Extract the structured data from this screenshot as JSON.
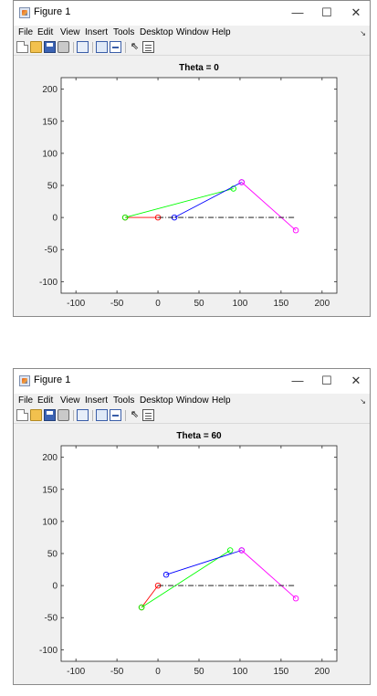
{
  "windows": [
    {
      "title": "Figure 1",
      "menus": [
        "File",
        "Edit",
        "View",
        "Insert",
        "Tools",
        "Desktop",
        "Window",
        "Help"
      ],
      "controls": {
        "minimize": "—",
        "maximize": "☐",
        "close": "✕"
      },
      "chart_data": {
        "type": "line",
        "title": "Theta = 0",
        "xlabel": "",
        "ylabel": "",
        "xlim": [
          -118,
          218
        ],
        "ylim": [
          -118,
          218
        ],
        "xticks": [
          -100,
          -50,
          0,
          50,
          100,
          150,
          200
        ],
        "yticks": [
          200,
          150,
          100,
          50,
          0,
          -50,
          -100
        ],
        "grid": false,
        "series": [
          {
            "color": "#ff0000",
            "style": "solid",
            "marker": "circle",
            "points": [
              [
                0,
                0
              ],
              [
                -40,
                0
              ]
            ]
          },
          {
            "color": "#00ff00",
            "style": "solid",
            "marker": "circle",
            "points": [
              [
                -40,
                0
              ],
              [
                92,
                45
              ]
            ]
          },
          {
            "color": "#0000ff",
            "style": "solid",
            "marker": "circle",
            "points": [
              [
                20,
                0
              ],
              [
                102,
                55
              ]
            ]
          },
          {
            "color": "#ff00ff",
            "style": "solid",
            "marker": "circle",
            "points": [
              [
                102,
                55
              ],
              [
                168,
                -20
              ]
            ]
          },
          {
            "color": "#000000",
            "style": "dashdot",
            "marker": "none",
            "points": [
              [
                0,
                0
              ],
              [
                168,
                0
              ]
            ]
          }
        ]
      }
    },
    {
      "title": "Figure 1",
      "menus": [
        "File",
        "Edit",
        "View",
        "Insert",
        "Tools",
        "Desktop",
        "Window",
        "Help"
      ],
      "controls": {
        "minimize": "—",
        "maximize": "☐",
        "close": "✕"
      },
      "chart_data": {
        "type": "line",
        "title": "Theta = 60",
        "xlabel": "",
        "ylabel": "",
        "xlim": [
          -118,
          218
        ],
        "ylim": [
          -118,
          218
        ],
        "xticks": [
          -100,
          -50,
          0,
          50,
          100,
          150,
          200
        ],
        "yticks": [
          200,
          150,
          100,
          50,
          0,
          -50,
          -100
        ],
        "grid": false,
        "series": [
          {
            "color": "#ff0000",
            "style": "solid",
            "marker": "circle",
            "points": [
              [
                0,
                0
              ],
              [
                -20,
                -34
              ]
            ]
          },
          {
            "color": "#00ff00",
            "style": "solid",
            "marker": "circle",
            "points": [
              [
                -20,
                -34
              ],
              [
                88,
                55
              ]
            ]
          },
          {
            "color": "#0000ff",
            "style": "solid",
            "marker": "circle",
            "points": [
              [
                10,
                17
              ],
              [
                102,
                55
              ]
            ]
          },
          {
            "color": "#ff00ff",
            "style": "solid",
            "marker": "circle",
            "points": [
              [
                102,
                55
              ],
              [
                168,
                -20
              ]
            ]
          },
          {
            "color": "#000000",
            "style": "dashdot",
            "marker": "none",
            "points": [
              [
                0,
                0
              ],
              [
                168,
                0
              ]
            ]
          }
        ]
      }
    }
  ]
}
